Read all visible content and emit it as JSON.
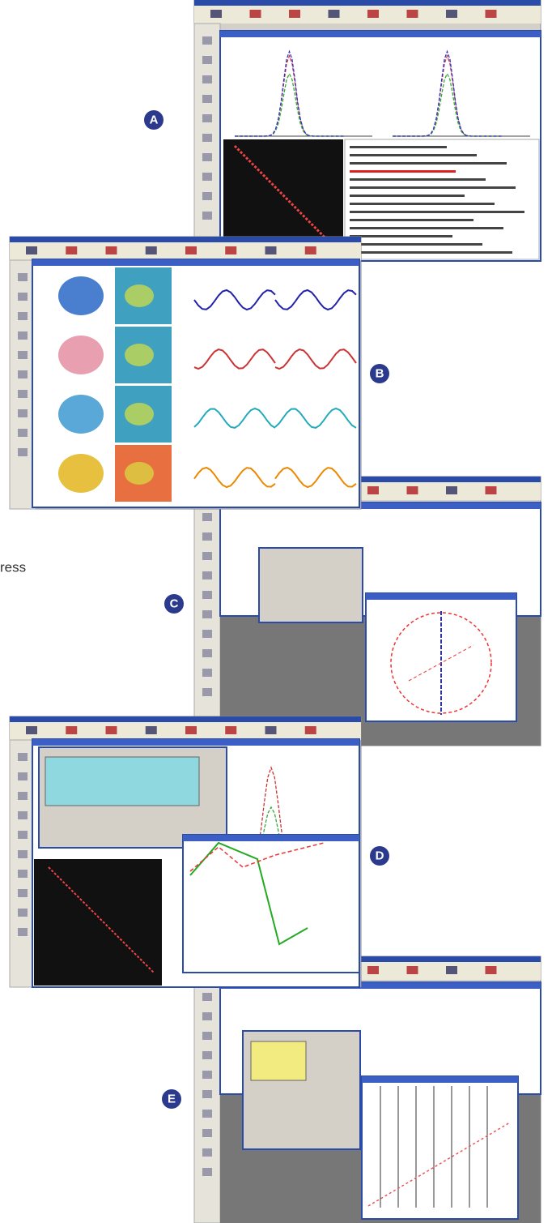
{
  "panels": [
    {
      "label": "A"
    },
    {
      "label": "B"
    },
    {
      "label": "C"
    },
    {
      "label": "D"
    },
    {
      "label": "E"
    }
  ],
  "caption_fragment": "ress"
}
